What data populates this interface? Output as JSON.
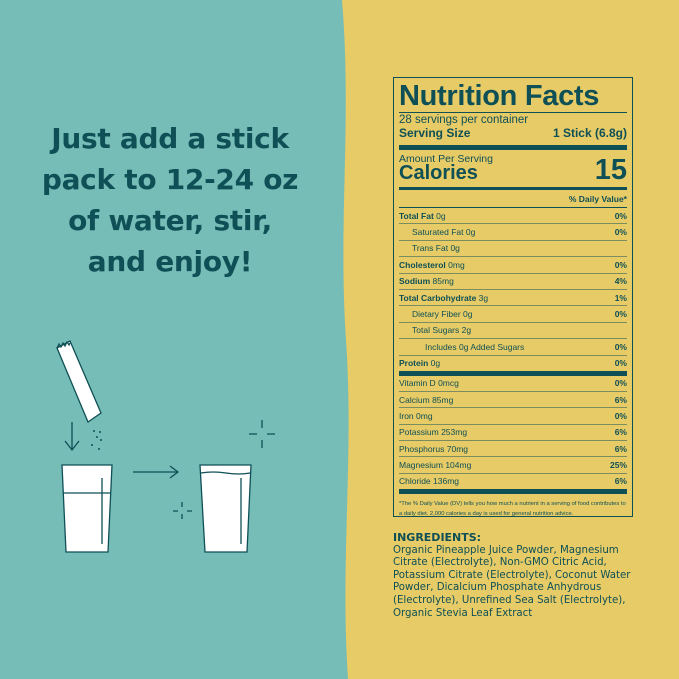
{
  "colors": {
    "left_bg": "#76bdb8",
    "right_bg": "#e6cb66",
    "text": "#0f4f56"
  },
  "headline": [
    "Just add a stick",
    "pack to 12-24 oz",
    "of water, stir,",
    "and enjoy!"
  ],
  "illustration": {
    "icons": [
      "stick-pack-icon",
      "down-arrow-icon",
      "glass-half-icon",
      "right-arrow-icon",
      "glass-full-icon",
      "sparkle-icon"
    ]
  },
  "nutrition": {
    "title": "Nutrition Facts",
    "servings": "28 servings per container",
    "serving_size_label": "Serving Size",
    "serving_size_value": "1 Stick (6.8g)",
    "amount_per_serving": "Amount Per Serving",
    "calories_label": "Calories",
    "calories_value": "15",
    "dv_header": "% Daily Value*",
    "rows": [
      {
        "name": "Total Fat",
        "amount": "0g",
        "dv": "0%",
        "bold": true,
        "indent": 0
      },
      {
        "name": "Saturated Fat",
        "amount": "0g",
        "dv": "0%",
        "bold": false,
        "indent": 1
      },
      {
        "name": "Trans Fat",
        "amount": "0g",
        "dv": "",
        "bold": false,
        "indent": 1
      },
      {
        "name": "Cholesterol",
        "amount": "0mg",
        "dv": "0%",
        "bold": true,
        "indent": 0
      },
      {
        "name": "Sodium",
        "amount": "85mg",
        "dv": "4%",
        "bold": true,
        "indent": 0
      },
      {
        "name": "Total Carbohydrate",
        "amount": "3g",
        "dv": "1%",
        "bold": true,
        "indent": 0
      },
      {
        "name": "Dietary Fiber",
        "amount": "0g",
        "dv": "0%",
        "bold": false,
        "indent": 1
      },
      {
        "name": "Total Sugars",
        "amount": "2g",
        "dv": "",
        "bold": false,
        "indent": 1
      },
      {
        "name": "Includes",
        "amount": "0g Added Sugars",
        "dv": "0%",
        "bold": false,
        "indent": 2
      },
      {
        "name": "Protein",
        "amount": "0g",
        "dv": "0%",
        "bold": true,
        "indent": 0,
        "thick": true
      },
      {
        "name": "Vitamin D",
        "amount": "0mcg",
        "dv": "0%",
        "bold": false,
        "indent": 0
      },
      {
        "name": "Calcium",
        "amount": "85mg",
        "dv": "6%",
        "bold": false,
        "indent": 0
      },
      {
        "name": "Iron",
        "amount": "0mg",
        "dv": "0%",
        "bold": false,
        "indent": 0
      },
      {
        "name": "Potassium",
        "amount": "253mg",
        "dv": "6%",
        "bold": false,
        "indent": 0
      },
      {
        "name": "Phosphorus",
        "amount": "70mg",
        "dv": "6%",
        "bold": false,
        "indent": 0
      },
      {
        "name": "Magnesium",
        "amount": "104mg",
        "dv": "25%",
        "bold": false,
        "indent": 0
      },
      {
        "name": "Chloride",
        "amount": "136mg",
        "dv": "6%",
        "bold": false,
        "indent": 0,
        "thick": true
      }
    ],
    "footnote": "*The % Daily Value (DV) tells you how much a nutrient in a serving of food contributes to a daily diet. 2,000 calories a day is used for general nutrition advice."
  },
  "ingredients": {
    "heading": "INGREDIENTS:",
    "text": "Organic Pineapple Juice Powder, Magnesium Citrate (Electrolyte), Non-GMO Citric Acid, Potassium Citrate (Electrolyte), Coconut Water Powder, Dicalcium Phosphate Anhydrous (Electrolyte), Unrefined Sea Salt (Electrolyte), Organic Stevia Leaf Extract"
  }
}
